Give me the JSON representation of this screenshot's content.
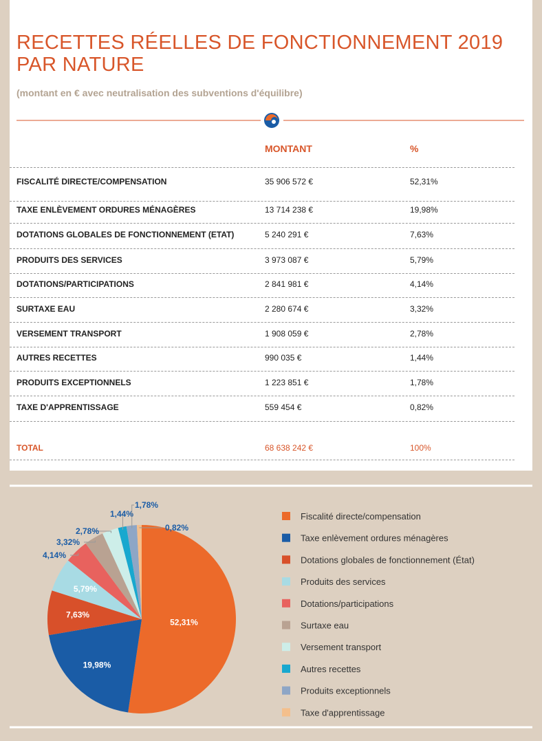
{
  "header": {
    "title": "RECETTES RÉELLES DE FONCTIONNEMENT 2019 PAR NATURE",
    "subtitle": "(montant en € avec neutralisation des subventions d'équilibre)"
  },
  "table": {
    "headers": [
      "MONTANT",
      "%"
    ],
    "rows": [
      [
        "FISCALITÉ DIRECTE/COMPENSATION",
        "35 906 572 €",
        "52,31%"
      ],
      [
        "TAXE ENLÈVEMENT ORDURES MÉNAGÈRES",
        "13 714 238 €",
        "19,98%"
      ],
      [
        "DOTATIONS GLOBALES DE FONCTIONNEMENT (ETAT)",
        "5 240 291 €",
        "7,63%"
      ],
      [
        "PRODUITS DES SERVICES",
        "3 973 087 €",
        "5,79%"
      ],
      [
        "DOTATIONS/PARTICIPATIONS",
        "2 841 981 €",
        "4,14%"
      ],
      [
        "SURTAXE EAU",
        "2 280 674 €",
        "3,32%"
      ],
      [
        "VERSEMENT TRANSPORT",
        "1 908 059 €",
        "2,78%"
      ],
      [
        "AUTRES RECETTES",
        "990 035 €",
        "1,44%"
      ],
      [
        "PRODUITS EXCEPTIONNELS",
        "1 223 851 €",
        "1,78%"
      ],
      [
        "TAXE D'APPRENTISSAGE",
        "559 454 €",
        "0,82%"
      ]
    ],
    "total": [
      "TOTAL",
      "68 638 242 €",
      "100%"
    ]
  },
  "chart_data": {
    "type": "pie",
    "categories": [
      "Fiscalité directe/compensation",
      "Taxe enlèvement ordures ménagères",
      "Dotations globales de fonctionnement (État)",
      "Produits des services",
      "Dotations/participations",
      "Surtaxe eau",
      "Versement transport",
      "Autres recettes",
      "Produits exceptionnels",
      "Taxe d'apprentissage"
    ],
    "values": [
      52.31,
      19.98,
      7.63,
      5.79,
      4.14,
      3.32,
      2.78,
      1.44,
      1.78,
      0.82
    ],
    "value_labels": [
      "52,31%",
      "19,98%",
      "7,63%",
      "5,79%",
      "4,14%",
      "3,32%",
      "2,78%",
      "1,44%",
      "1,78%",
      "0,82%"
    ],
    "colors": [
      "#ec6a2a",
      "#1a5ca6",
      "#d8502a",
      "#a8dbe4",
      "#e8625e",
      "#b9a292",
      "#cdeee9",
      "#18a8cf",
      "#8ea6c6",
      "#f4bf8c"
    ]
  }
}
